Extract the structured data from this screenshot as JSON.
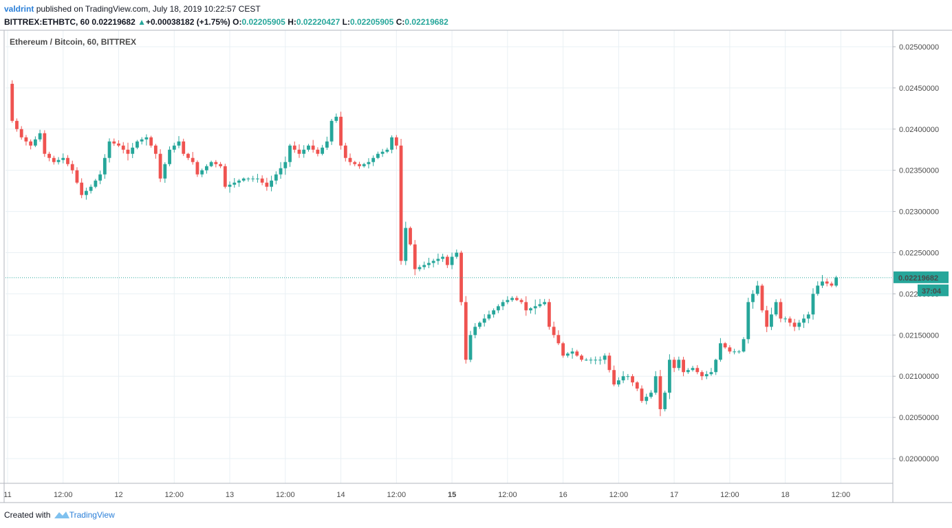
{
  "header": {
    "author": "valdrint",
    "published_text": "published on TradingView.com, July 18, 2019 10:22:57 CEST",
    "symbol": "BITTREX:ETHBTC, 60",
    "last": "0.02219682",
    "change_arrow": "▲",
    "change": "+0.00038182 (+1.75%)",
    "o_label": "O:",
    "o_value": "0.02205905",
    "h_label": "H:",
    "h_value": "0.02220427",
    "l_label": "L:",
    "l_value": "0.02205905",
    "c_label": "C:",
    "c_value": "0.02219682"
  },
  "footer": {
    "created_with": "Created with",
    "brand": "TradingView"
  },
  "colors": {
    "up": "#26a69a",
    "down": "#ef5350",
    "grid": "#e9f0f4",
    "axis": "#b2b5be"
  },
  "chart_data": {
    "type": "candlestick",
    "legend": "Ethereum / Bitcoin, 60, BITTREX",
    "ylim": [
      0.0197,
      0.0252
    ],
    "x_range": [
      0,
      213
    ],
    "y_ticks": [
      "0.02500000",
      "0.02450000",
      "0.02400000",
      "0.02350000",
      "0.02300000",
      "0.02250000",
      "0.02200000",
      "0.02150000",
      "0.02100000",
      "0.02050000",
      "0.02000000"
    ],
    "y_tick_values": [
      0.025,
      0.0245,
      0.024,
      0.0235,
      0.023,
      0.0225,
      0.022,
      0.0215,
      0.021,
      0.0205,
      0.02
    ],
    "x_ticks": [
      {
        "label": "11",
        "bar": 0
      },
      {
        "label": "12:00",
        "bar": 12
      },
      {
        "label": "12",
        "bar": 24
      },
      {
        "label": "12:00",
        "bar": 36
      },
      {
        "label": "13",
        "bar": 48
      },
      {
        "label": "12:00",
        "bar": 60
      },
      {
        "label": "14",
        "bar": 72
      },
      {
        "label": "12:00",
        "bar": 84
      },
      {
        "label": "15",
        "bar": 96
      },
      {
        "label": "12:00",
        "bar": 108
      },
      {
        "label": "16",
        "bar": 120
      },
      {
        "label": "12:00",
        "bar": 132
      },
      {
        "label": "17",
        "bar": 144
      },
      {
        "label": "12:00",
        "bar": 156
      },
      {
        "label": "18",
        "bar": 168
      },
      {
        "label": "12:00",
        "bar": 180
      }
    ],
    "current_price": "0.02219682",
    "current_value": 0.02219682,
    "countdown": "37:04",
    "keypoints": [
      [
        0,
        0.02455
      ],
      [
        1,
        0.0241
      ],
      [
        3,
        0.0239
      ],
      [
        5,
        0.0238
      ],
      [
        7,
        0.02395
      ],
      [
        8,
        0.0237
      ],
      [
        10,
        0.0236
      ],
      [
        12,
        0.02365
      ],
      [
        14,
        0.0235
      ],
      [
        16,
        0.0232
      ],
      [
        18,
        0.0233
      ],
      [
        20,
        0.02345
      ],
      [
        22,
        0.02385
      ],
      [
        24,
        0.0238
      ],
      [
        26,
        0.0237
      ],
      [
        28,
        0.02385
      ],
      [
        30,
        0.0239
      ],
      [
        32,
        0.0237
      ],
      [
        33,
        0.0234
      ],
      [
        35,
        0.02375
      ],
      [
        37,
        0.02385
      ],
      [
        38,
        0.0237
      ],
      [
        40,
        0.0236
      ],
      [
        41,
        0.02345
      ],
      [
        43,
        0.02355
      ],
      [
        44,
        0.0236
      ],
      [
        46,
        0.02355
      ],
      [
        47,
        0.0233
      ],
      [
        49,
        0.02335
      ],
      [
        51,
        0.0234
      ],
      [
        54,
        0.0234
      ],
      [
        56,
        0.0233
      ],
      [
        58,
        0.02345
      ],
      [
        60,
        0.0236
      ],
      [
        61,
        0.0238
      ],
      [
        63,
        0.0237
      ],
      [
        65,
        0.0238
      ],
      [
        67,
        0.0237
      ],
      [
        69,
        0.02385
      ],
      [
        70,
        0.0241
      ],
      [
        71,
        0.02415
      ],
      [
        72,
        0.0238
      ],
      [
        73,
        0.02365
      ],
      [
        74,
        0.0236
      ],
      [
        76,
        0.02355
      ],
      [
        78,
        0.0236
      ],
      [
        80,
        0.0237
      ],
      [
        82,
        0.02375
      ],
      [
        83,
        0.0239
      ],
      [
        84,
        0.0238
      ],
      [
        85,
        0.0224
      ],
      [
        86,
        0.0228
      ],
      [
        87,
        0.0226
      ],
      [
        88,
        0.0223
      ],
      [
        90,
        0.02235
      ],
      [
        92,
        0.0224
      ],
      [
        94,
        0.02245
      ],
      [
        95,
        0.02235
      ],
      [
        96,
        0.02245
      ],
      [
        97,
        0.0225
      ],
      [
        98,
        0.0219
      ],
      [
        99,
        0.0212
      ],
      [
        100,
        0.0215
      ],
      [
        101,
        0.0216
      ],
      [
        103,
        0.0217
      ],
      [
        105,
        0.0218
      ],
      [
        107,
        0.0219
      ],
      [
        109,
        0.02195
      ],
      [
        111,
        0.0219
      ],
      [
        112,
        0.0218
      ],
      [
        114,
        0.02185
      ],
      [
        116,
        0.0219
      ],
      [
        117,
        0.0216
      ],
      [
        119,
        0.0214
      ],
      [
        120,
        0.02125
      ],
      [
        122,
        0.0213
      ],
      [
        124,
        0.0212
      ],
      [
        126,
        0.0212
      ],
      [
        128,
        0.0212
      ],
      [
        129,
        0.02125
      ],
      [
        131,
        0.0209
      ],
      [
        133,
        0.021
      ],
      [
        134,
        0.021
      ],
      [
        136,
        0.02085
      ],
      [
        137,
        0.0207
      ],
      [
        139,
        0.0208
      ],
      [
        140,
        0.021
      ],
      [
        141,
        0.0206
      ],
      [
        142,
        0.0208
      ],
      [
        143,
        0.0212
      ],
      [
        144,
        0.0211
      ],
      [
        145,
        0.0212
      ],
      [
        146,
        0.02105
      ],
      [
        148,
        0.0211
      ],
      [
        150,
        0.021
      ],
      [
        152,
        0.02105
      ],
      [
        153,
        0.0212
      ],
      [
        154,
        0.0214
      ],
      [
        156,
        0.0213
      ],
      [
        158,
        0.0213
      ],
      [
        159,
        0.02145
      ],
      [
        160,
        0.0219
      ],
      [
        161,
        0.022
      ],
      [
        162,
        0.0221
      ],
      [
        163,
        0.0218
      ],
      [
        164,
        0.0216
      ],
      [
        165,
        0.02175
      ],
      [
        166,
        0.0219
      ],
      [
        167,
        0.0217
      ],
      [
        168,
        0.0217
      ],
      [
        169,
        0.02165
      ],
      [
        170,
        0.0216
      ],
      [
        172,
        0.0217
      ],
      [
        173,
        0.02175
      ],
      [
        174,
        0.022
      ],
      [
        175,
        0.0221
      ],
      [
        176,
        0.02215
      ],
      [
        178,
        0.0221
      ],
      [
        179,
        0.0222
      ]
    ]
  }
}
